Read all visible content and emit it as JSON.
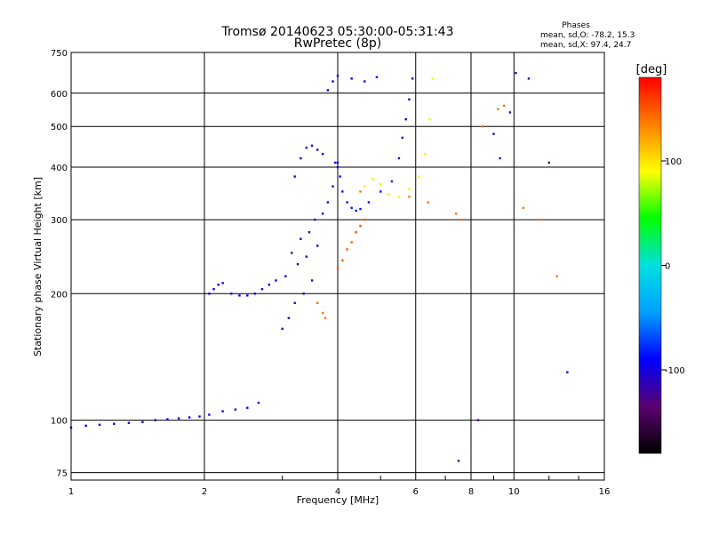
{
  "chart_data": {
    "type": "scatter",
    "title": "Tromsø 20140623 05:30:00-05:31:43",
    "subtitle": "RwPretec (8p)",
    "phases_block": {
      "title": "Phases",
      "line1": "mean, sd,O: -78.2, 15.3",
      "line2": "mean, sd,X:  97.4, 24.7"
    },
    "xlabel": "Frequency [MHz]",
    "ylabel": "Stationary phase Virtual Height [km]",
    "x_scale": "log",
    "y_scale": "log",
    "xlim": [
      1,
      16
    ],
    "ylim": [
      72,
      750
    ],
    "x_ticks": [
      {
        "value": 1,
        "label": "1"
      },
      {
        "value": 2,
        "label": "2"
      },
      {
        "value": 4,
        "label": "4"
      },
      {
        "value": 6,
        "label": "6"
      },
      {
        "value": 8,
        "label": "8"
      },
      {
        "value": 10,
        "label": "10"
      },
      {
        "value": 16,
        "label": "16"
      }
    ],
    "y_ticks": [
      {
        "value": 75,
        "label": "75"
      },
      {
        "value": 100,
        "label": "100"
      },
      {
        "value": 200,
        "label": "200"
      },
      {
        "value": 300,
        "label": "300"
      },
      {
        "value": 400,
        "label": "400"
      },
      {
        "value": 500,
        "label": "500"
      },
      {
        "value": 600,
        "label": "600"
      },
      {
        "value": 750,
        "label": "750"
      }
    ],
    "grid": true,
    "colorbar": {
      "label": "[deg]",
      "range": [
        -180,
        180
      ],
      "ticks": [
        {
          "value": 100,
          "label": "100"
        },
        {
          "value": 0,
          "label": "0"
        },
        {
          "value": -100,
          "label": "-100"
        }
      ],
      "colors": [
        "#000000",
        "#5a0070",
        "#0000ff",
        "#00a0ff",
        "#00e0e0",
        "#00ff00",
        "#ffff00",
        "#ff8000",
        "#ff0000"
      ]
    },
    "series": [
      {
        "x": [
          1.0,
          1.08,
          1.16,
          1.25,
          1.35,
          1.45,
          1.55,
          1.65,
          1.75,
          1.85,
          1.95,
          2.05,
          2.2,
          2.35,
          2.5,
          2.65
        ],
        "y": [
          96,
          97,
          97.5,
          98,
          98.5,
          99,
          100,
          100.5,
          101,
          101.5,
          102,
          103,
          105,
          106,
          107,
          110
        ],
        "phase": -95
      },
      {
        "x": [
          2.05,
          2.1,
          2.15,
          2.2,
          2.3,
          2.4,
          2.5,
          2.6,
          2.7,
          2.8,
          2.9
        ],
        "y": [
          200,
          205,
          210,
          212,
          200,
          198,
          198,
          200,
          205,
          210,
          215
        ],
        "phase": -90
      },
      {
        "x": [
          3.0,
          3.05,
          3.1,
          3.15,
          3.2,
          3.25,
          3.3,
          3.35,
          3.4,
          3.45,
          3.5,
          3.55,
          3.6,
          3.7,
          3.8,
          3.9,
          4.0
        ],
        "y": [
          165,
          220,
          175,
          250,
          190,
          235,
          270,
          200,
          245,
          280,
          215,
          300,
          260,
          310,
          330,
          360,
          410
        ],
        "phase": -110
      },
      {
        "x": [
          3.2,
          3.3,
          3.4,
          3.5,
          3.6,
          3.7
        ],
        "y": [
          380,
          420,
          445,
          450,
          440,
          430
        ],
        "phase": -95
      },
      {
        "x": [
          3.95,
          4.0,
          4.05,
          4.1,
          4.2,
          4.3,
          4.4,
          4.5,
          4.7,
          5.0,
          5.3
        ],
        "y": [
          410,
          400,
          380,
          350,
          330,
          320,
          315,
          318,
          330,
          350,
          370
        ],
        "phase": -85
      },
      {
        "x": [
          4.0,
          4.1,
          4.2,
          4.3,
          4.4,
          4.5,
          4.6
        ],
        "y": [
          230,
          240,
          255,
          265,
          280,
          290,
          300
        ],
        "phase": 150
      },
      {
        "x": [
          4.6,
          4.8,
          5.0,
          5.2,
          5.5,
          5.8,
          6.1,
          6.3,
          6.45,
          6.55
        ],
        "y": [
          360,
          375,
          365,
          345,
          340,
          355,
          380,
          430,
          520,
          650
        ],
        "phase": 95
      },
      {
        "x": [
          5.5,
          5.6,
          5.7,
          5.8,
          5.9
        ],
        "y": [
          420,
          470,
          520,
          580,
          650
        ],
        "phase": -105
      },
      {
        "x": [
          3.8,
          3.9,
          4.0,
          4.3,
          4.6,
          4.9
        ],
        "y": [
          610,
          640,
          660,
          650,
          640,
          655
        ],
        "phase": -90
      },
      {
        "x": [
          3.6,
          3.7,
          3.75,
          4.5,
          5.8,
          6.4,
          7.4,
          7.6,
          8.5,
          9.2,
          9.5,
          10.5,
          11.5,
          12.5
        ],
        "y": [
          190,
          180,
          175,
          350,
          340,
          330,
          310,
          300,
          500,
          550,
          560,
          320,
          300,
          220
        ],
        "phase": 140
      },
      {
        "x": [
          7.5,
          8.3,
          9.0,
          9.3,
          9.8,
          10.1,
          10.8,
          12.0,
          13.2
        ],
        "y": [
          80,
          100,
          480,
          420,
          540,
          670,
          650,
          410,
          130
        ],
        "phase": -120
      }
    ]
  }
}
